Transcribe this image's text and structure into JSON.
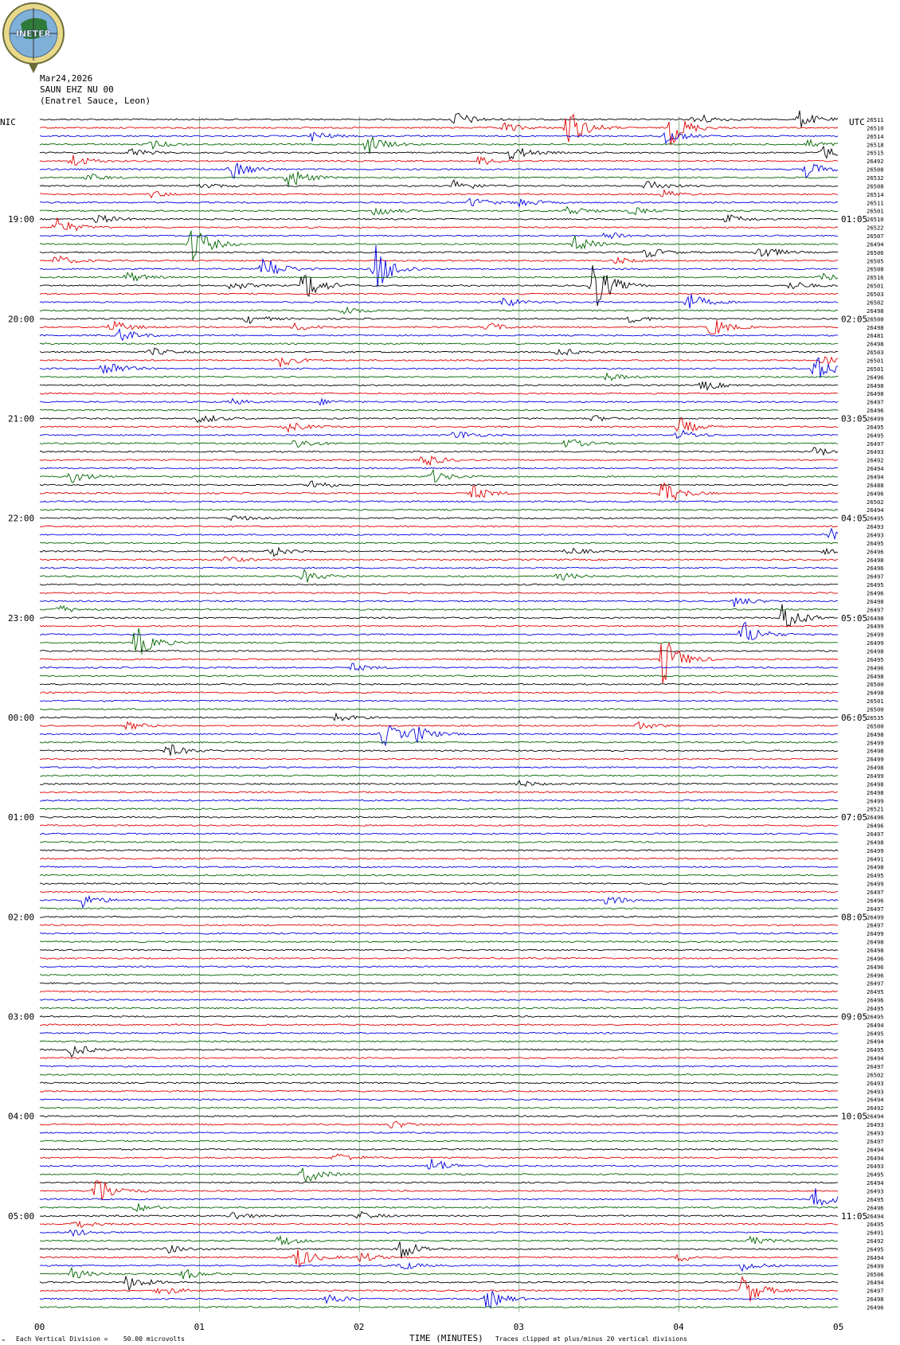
{
  "logo": {
    "text": "INETER"
  },
  "header": {
    "date": "Mar24,2026",
    "station": "SAUN EHZ NU 00",
    "location": "(Enatrel Sauce, Leon)"
  },
  "timezones": {
    "left": "NIC",
    "right": "UTC"
  },
  "footer": {
    "x_axis_title": "TIME (MINUTES)",
    "scale_note": "Each Vertical Division =    50.00 microvolts",
    "clip_note": "Traces clipped at plus/minus 20 vertical divisions"
  },
  "colors": {
    "trace_cycle": [
      "#000000",
      "#e00000",
      "#0000e0",
      "#006400"
    ],
    "gridline": "#7fa57f"
  },
  "chart_data": {
    "type": "line",
    "title": "SAUN EHZ NU 00",
    "xlabel": "TIME (MINUTES)",
    "xlim": [
      0,
      5
    ],
    "x_ticks": [
      "00",
      "01",
      "02",
      "03",
      "04",
      "05"
    ],
    "left_time_labels": [
      "19:00",
      "20:00",
      "21:00",
      "22:00",
      "23:00",
      "00:00",
      "01:00",
      "02:00",
      "03:00",
      "04:00",
      "05:00"
    ],
    "right_time_labels": [
      "01:05",
      "02:05",
      "03:05",
      "04:05",
      "05:05",
      "06:05",
      "07:05",
      "08:05",
      "09:05",
      "10:05",
      "11:05"
    ],
    "trace_count": 144,
    "trace_offsets": [
      "26511",
      "26510",
      "26514",
      "26518",
      "26515",
      "26492",
      "26508",
      "26532",
      "26508",
      "26514",
      "26511",
      "26501",
      "26510",
      "26522",
      "26507",
      "26494",
      "26506",
      "26505",
      "26508",
      "26516",
      "26501",
      "26503",
      "26502",
      "26498",
      "26500",
      "26498",
      "26481",
      "26498",
      "26503",
      "26501",
      "26501",
      "26496",
      "26498",
      "26498",
      "26497",
      "26496",
      "26499",
      "26495",
      "26495",
      "26497",
      "26493",
      "26492",
      "26494",
      "26494",
      "26488",
      "26496",
      "26502",
      "26494",
      "26495",
      "26493",
      "26493",
      "26495",
      "26496",
      "26498",
      "26496",
      "26497",
      "26495",
      "26496",
      "26498",
      "26497",
      "26498",
      "26499",
      "26499",
      "26499",
      "26498",
      "26495",
      "26496",
      "26498",
      "26500",
      "26498",
      "26501",
      "26500",
      "26535",
      "26500",
      "26498",
      "26499",
      "26498",
      "26499",
      "26498",
      "26499",
      "26498",
      "26498",
      "26499",
      "26521",
      "26496",
      "26496",
      "26497",
      "26498",
      "26499",
      "26491",
      "26498",
      "26495",
      "26499",
      "26497",
      "26496",
      "26497",
      "26499",
      "26497",
      "26499",
      "26498",
      "26498",
      "26496",
      "26496",
      "26496",
      "26497",
      "26495",
      "26496",
      "26495",
      "26495",
      "26494",
      "26495",
      "26494",
      "26495",
      "26494",
      "26497",
      "26502",
      "26493",
      "26493",
      "26494",
      "26492",
      "26494",
      "26493",
      "26493",
      "26497",
      "26494",
      "26494",
      "26493",
      "26495",
      "26494",
      "26493",
      "26495",
      "26496",
      "26494",
      "26495",
      "26491",
      "26492",
      "26495",
      "26494",
      "26499",
      "26506",
      "26494",
      "26497",
      "26498",
      "26496"
    ],
    "events": [
      {
        "trace": 0,
        "t_min": 2.6,
        "amp": 1.2
      },
      {
        "trace": 0,
        "t_min": 4.1,
        "amp": 1.0
      },
      {
        "trace": 0,
        "t_min": 4.75,
        "amp": 1.3
      },
      {
        "trace": 1,
        "t_min": 3.3,
        "amp": 3.0
      },
      {
        "trace": 1,
        "t_min": 3.95,
        "amp": 2.5
      },
      {
        "trace": 1,
        "t_min": 2.9,
        "amp": 0.8
      },
      {
        "trace": 2,
        "t_min": 1.7,
        "amp": 0.8
      },
      {
        "trace": 2,
        "t_min": 3.9,
        "amp": 1.4
      },
      {
        "trace": 3,
        "t_min": 2.05,
        "amp": 1.5
      },
      {
        "trace": 3,
        "t_min": 0.7,
        "amp": 0.6
      },
      {
        "trace": 3,
        "t_min": 4.8,
        "amp": 0.7
      },
      {
        "trace": 4,
        "t_min": 0.55,
        "amp": 0.8
      },
      {
        "trace": 4,
        "t_min": 2.95,
        "amp": 1.2
      },
      {
        "trace": 4,
        "t_min": 4.9,
        "amp": 1.0
      },
      {
        "trace": 5,
        "t_min": 0.2,
        "amp": 1.0
      },
      {
        "trace": 5,
        "t_min": 2.75,
        "amp": 0.7
      },
      {
        "trace": 6,
        "t_min": 1.2,
        "amp": 1.5
      },
      {
        "trace": 6,
        "t_min": 4.8,
        "amp": 1.2
      },
      {
        "trace": 7,
        "t_min": 1.55,
        "amp": 1.8
      },
      {
        "trace": 7,
        "t_min": 0.3,
        "amp": 0.6
      },
      {
        "trace": 8,
        "t_min": 2.6,
        "amp": 1.0
      },
      {
        "trace": 8,
        "t_min": 3.8,
        "amp": 1.0
      },
      {
        "trace": 8,
        "t_min": 1.0,
        "amp": 0.5
      },
      {
        "trace": 9,
        "t_min": 0.7,
        "amp": 0.5
      },
      {
        "trace": 9,
        "t_min": 3.9,
        "amp": 0.6
      },
      {
        "trace": 10,
        "t_min": 2.7,
        "amp": 0.8
      },
      {
        "trace": 10,
        "t_min": 3.0,
        "amp": 0.7
      },
      {
        "trace": 11,
        "t_min": 2.1,
        "amp": 0.8
      },
      {
        "trace": 11,
        "t_min": 3.3,
        "amp": 0.8
      },
      {
        "trace": 11,
        "t_min": 3.7,
        "amp": 0.6
      },
      {
        "trace": 12,
        "t_min": 0.35,
        "amp": 0.8
      },
      {
        "trace": 12,
        "t_min": 4.3,
        "amp": 0.7
      },
      {
        "trace": 13,
        "t_min": 0.1,
        "amp": 1.5
      },
      {
        "trace": 14,
        "t_min": 3.55,
        "amp": 0.8
      },
      {
        "trace": 15,
        "t_min": 0.95,
        "amp": 3.0
      },
      {
        "trace": 15,
        "t_min": 3.35,
        "amp": 1.2
      },
      {
        "trace": 16,
        "t_min": 4.5,
        "amp": 1.2
      },
      {
        "trace": 16,
        "t_min": 3.8,
        "amp": 0.8
      },
      {
        "trace": 17,
        "t_min": 0.1,
        "amp": 0.8
      },
      {
        "trace": 17,
        "t_min": 3.6,
        "amp": 0.5
      },
      {
        "trace": 18,
        "t_min": 1.4,
        "amp": 2.0
      },
      {
        "trace": 18,
        "t_min": 2.1,
        "amp": 3.5
      },
      {
        "trace": 19,
        "t_min": 0.55,
        "amp": 0.8
      },
      {
        "trace": 19,
        "t_min": 4.9,
        "amp": 0.6
      },
      {
        "trace": 20,
        "t_min": 1.65,
        "amp": 2.5
      },
      {
        "trace": 20,
        "t_min": 3.45,
        "amp": 4.5
      },
      {
        "trace": 20,
        "t_min": 1.2,
        "amp": 0.7
      },
      {
        "trace": 20,
        "t_min": 4.7,
        "amp": 0.7
      },
      {
        "trace": 22,
        "t_min": 2.9,
        "amp": 0.8
      },
      {
        "trace": 22,
        "t_min": 4.05,
        "amp": 1.5
      },
      {
        "trace": 23,
        "t_min": 1.9,
        "amp": 0.7
      },
      {
        "trace": 24,
        "t_min": 1.3,
        "amp": 0.7
      },
      {
        "trace": 24,
        "t_min": 3.7,
        "amp": 0.6
      },
      {
        "trace": 25,
        "t_min": 0.45,
        "amp": 1.0
      },
      {
        "trace": 25,
        "t_min": 1.6,
        "amp": 0.6
      },
      {
        "trace": 25,
        "t_min": 2.8,
        "amp": 0.7
      },
      {
        "trace": 25,
        "t_min": 4.2,
        "amp": 1.5
      },
      {
        "trace": 26,
        "t_min": 0.5,
        "amp": 1.0
      },
      {
        "trace": 28,
        "t_min": 0.7,
        "amp": 0.6
      },
      {
        "trace": 28,
        "t_min": 3.25,
        "amp": 0.6
      },
      {
        "trace": 29,
        "t_min": 1.5,
        "amp": 1.0
      },
      {
        "trace": 29,
        "t_min": 4.9,
        "amp": 0.6
      },
      {
        "trace": 30,
        "t_min": 0.4,
        "amp": 1.5
      },
      {
        "trace": 30,
        "t_min": 4.85,
        "amp": 2.0
      },
      {
        "trace": 31,
        "t_min": 3.55,
        "amp": 0.6
      },
      {
        "trace": 32,
        "t_min": 4.15,
        "amp": 0.8
      },
      {
        "trace": 34,
        "t_min": 1.2,
        "amp": 0.4
      },
      {
        "trace": 34,
        "t_min": 1.75,
        "amp": 0.4
      },
      {
        "trace": 36,
        "t_min": 1.0,
        "amp": 0.8
      },
      {
        "trace": 36,
        "t_min": 3.45,
        "amp": 0.5
      },
      {
        "trace": 37,
        "t_min": 1.55,
        "amp": 0.8
      },
      {
        "trace": 37,
        "t_min": 4.0,
        "amp": 1.3
      },
      {
        "trace": 38,
        "t_min": 2.6,
        "amp": 0.8
      },
      {
        "trace": 38,
        "t_min": 4.0,
        "amp": 0.8
      },
      {
        "trace": 39,
        "t_min": 1.6,
        "amp": 0.8
      },
      {
        "trace": 39,
        "t_min": 3.3,
        "amp": 0.8
      },
      {
        "trace": 40,
        "t_min": 4.85,
        "amp": 0.7
      },
      {
        "trace": 41,
        "t_min": 2.4,
        "amp": 1.0
      },
      {
        "trace": 43,
        "t_min": 0.2,
        "amp": 1.0
      },
      {
        "trace": 43,
        "t_min": 2.45,
        "amp": 1.0
      },
      {
        "trace": 44,
        "t_min": 1.7,
        "amp": 0.8
      },
      {
        "trace": 45,
        "t_min": 2.7,
        "amp": 1.2
      },
      {
        "trace": 45,
        "t_min": 3.9,
        "amp": 2.0
      },
      {
        "trace": 48,
        "t_min": 1.2,
        "amp": 0.5
      },
      {
        "trace": 50,
        "t_min": 4.95,
        "amp": 0.8
      },
      {
        "trace": 52,
        "t_min": 1.45,
        "amp": 0.8
      },
      {
        "trace": 52,
        "t_min": 3.3,
        "amp": 0.6
      },
      {
        "trace": 52,
        "t_min": 4.9,
        "amp": 0.4
      },
      {
        "trace": 53,
        "t_min": 1.15,
        "amp": 0.6
      },
      {
        "trace": 55,
        "t_min": 1.65,
        "amp": 1.0
      },
      {
        "trace": 55,
        "t_min": 3.25,
        "amp": 0.6
      },
      {
        "trace": 58,
        "t_min": 4.35,
        "amp": 0.8
      },
      {
        "trace": 59,
        "t_min": 0.1,
        "amp": 0.7
      },
      {
        "trace": 60,
        "t_min": 4.65,
        "amp": 2.5
      },
      {
        "trace": 62,
        "t_min": 4.4,
        "amp": 2.0
      },
      {
        "trace": 63,
        "t_min": 0.6,
        "amp": 2.5
      },
      {
        "trace": 65,
        "t_min": 3.9,
        "amp": 3.5
      },
      {
        "trace": 66,
        "t_min": 1.95,
        "amp": 0.6
      },
      {
        "trace": 72,
        "t_min": 1.85,
        "amp": 0.6
      },
      {
        "trace": 73,
        "t_min": 0.55,
        "amp": 0.6
      },
      {
        "trace": 73,
        "t_min": 3.75,
        "amp": 0.6
      },
      {
        "trace": 74,
        "t_min": 2.15,
        "amp": 1.8
      },
      {
        "trace": 74,
        "t_min": 2.35,
        "amp": 1.2
      },
      {
        "trace": 76,
        "t_min": 0.8,
        "amp": 1.0
      },
      {
        "trace": 80,
        "t_min": 3.0,
        "amp": 0.5
      },
      {
        "trace": 94,
        "t_min": 0.25,
        "amp": 1.2
      },
      {
        "trace": 94,
        "t_min": 3.55,
        "amp": 0.8
      },
      {
        "trace": 112,
        "t_min": 0.2,
        "amp": 1.0
      },
      {
        "trace": 121,
        "t_min": 2.2,
        "amp": 0.6
      },
      {
        "trace": 125,
        "t_min": 1.85,
        "amp": 0.8
      },
      {
        "trace": 126,
        "t_min": 2.45,
        "amp": 1.2
      },
      {
        "trace": 127,
        "t_min": 1.65,
        "amp": 1.4
      },
      {
        "trace": 129,
        "t_min": 0.35,
        "amp": 2.5
      },
      {
        "trace": 130,
        "t_min": 4.85,
        "amp": 2.0
      },
      {
        "trace": 131,
        "t_min": 0.6,
        "amp": 0.6
      },
      {
        "trace": 132,
        "t_min": 1.2,
        "amp": 0.7
      },
      {
        "trace": 132,
        "t_min": 2.0,
        "amp": 0.6
      },
      {
        "trace": 133,
        "t_min": 0.2,
        "amp": 0.8
      },
      {
        "trace": 134,
        "t_min": 0.2,
        "amp": 0.6
      },
      {
        "trace": 135,
        "t_min": 1.5,
        "amp": 0.8
      },
      {
        "trace": 135,
        "t_min": 4.45,
        "amp": 0.6
      },
      {
        "trace": 136,
        "t_min": 2.25,
        "amp": 1.8
      },
      {
        "trace": 136,
        "t_min": 0.8,
        "amp": 0.6
      },
      {
        "trace": 137,
        "t_min": 1.6,
        "amp": 1.8
      },
      {
        "trace": 137,
        "t_min": 2.0,
        "amp": 0.8
      },
      {
        "trace": 137,
        "t_min": 4.0,
        "amp": 0.6
      },
      {
        "trace": 138,
        "t_min": 2.25,
        "amp": 0.8
      },
      {
        "trace": 138,
        "t_min": 4.4,
        "amp": 0.8
      },
      {
        "trace": 139,
        "t_min": 0.2,
        "amp": 0.8
      },
      {
        "trace": 139,
        "t_min": 0.9,
        "amp": 0.8
      },
      {
        "trace": 140,
        "t_min": 0.55,
        "amp": 1.2
      },
      {
        "trace": 141,
        "t_min": 4.4,
        "amp": 2.5
      },
      {
        "trace": 141,
        "t_min": 0.75,
        "amp": 0.8
      },
      {
        "trace": 142,
        "t_min": 2.8,
        "amp": 1.5
      },
      {
        "trace": 142,
        "t_min": 1.8,
        "amp": 0.8
      }
    ]
  }
}
